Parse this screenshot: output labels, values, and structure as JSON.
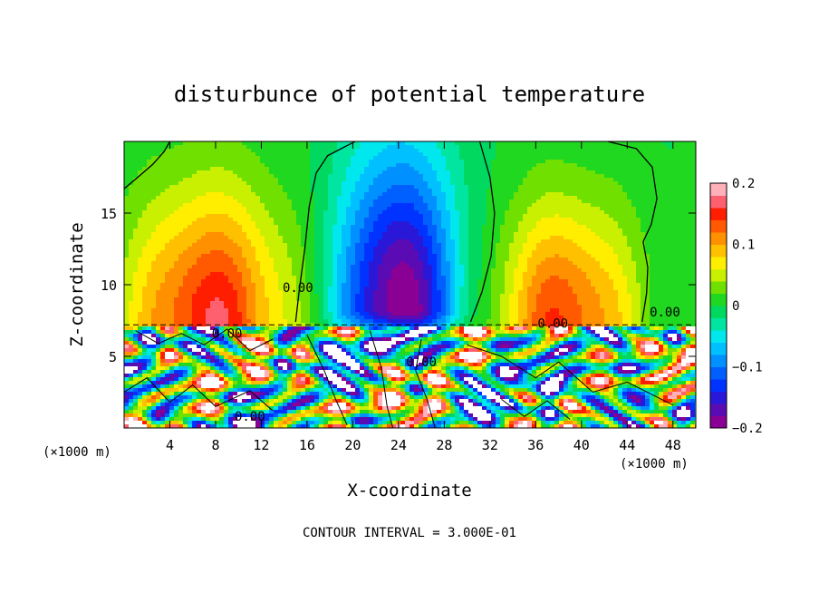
{
  "chart_data": {
    "type": "heatmap",
    "title": "disturbunce of potential temperature",
    "xlabel": "X-coordinate",
    "ylabel": "Z-coordinate",
    "x_unit": "(×1000 m)",
    "footer": "CONTOUR INTERVAL = 3.000E-01",
    "xlim": [
      0,
      50
    ],
    "ylim": [
      0,
      20
    ],
    "x_ticks": [
      {
        "value": 4,
        "label": "4"
      },
      {
        "value": 8,
        "label": "8"
      },
      {
        "value": 12,
        "label": "12"
      },
      {
        "value": 16,
        "label": "16"
      },
      {
        "value": 20,
        "label": "20"
      },
      {
        "value": 24,
        "label": "24"
      },
      {
        "value": 28,
        "label": "28"
      },
      {
        "value": 32,
        "label": "32"
      },
      {
        "value": 36,
        "label": "36"
      },
      {
        "value": 40,
        "label": "40"
      },
      {
        "value": 44,
        "label": "44"
      },
      {
        "value": 48,
        "label": "48"
      }
    ],
    "y_ticks": [
      {
        "value": 5,
        "label": "5"
      },
      {
        "value": 10,
        "label": "10"
      },
      {
        "value": 15,
        "label": "15"
      }
    ],
    "colorbar": {
      "min": -0.2,
      "max": 0.2,
      "ticks": [
        {
          "value": 0.2,
          "label": "0.2"
        },
        {
          "value": 0.1,
          "label": "0.1"
        },
        {
          "value": 0,
          "label": "0"
        },
        {
          "value": -0.1,
          "label": "-0.1"
        },
        {
          "value": -0.2,
          "label": "-0.2"
        }
      ],
      "colors": [
        "#8a0094",
        "#5b0bb4",
        "#2a18d8",
        "#0033ff",
        "#0060ff",
        "#0090ff",
        "#00c0ff",
        "#00e8ee",
        "#00e6a0",
        "#00d860",
        "#20d820",
        "#70e000",
        "#c8f000",
        "#ffee00",
        "#ffc000",
        "#ff9000",
        "#ff5a00",
        "#ff1e00",
        "#ff6070",
        "#ffb0b8"
      ]
    },
    "contour_labels": [
      {
        "x": 15.2,
        "y": 9.5,
        "text": "0.00"
      },
      {
        "x": 37.5,
        "y": 7.0,
        "text": "0.00"
      },
      {
        "x": 47.3,
        "y": 7.8,
        "text": "0.00"
      },
      {
        "x": 11.0,
        "y": 0.5,
        "text": "0.00"
      },
      {
        "x": 26.0,
        "y": 4.3,
        "text": "0.00"
      },
      {
        "x": 9.0,
        "y": 6.3,
        "text": "0.00"
      }
    ],
    "upper_features": [
      {
        "x": 7.5,
        "z": 7.2,
        "value": 0.16,
        "sx": 4.8,
        "sz": 6.5,
        "kind": "warm"
      },
      {
        "x": 38.5,
        "z": 7.2,
        "value": 0.14,
        "sx": 4.2,
        "sz": 5.8,
        "kind": "warm"
      },
      {
        "x": 24.0,
        "z": 8.3,
        "value": -0.2,
        "sx": 3.6,
        "sz": 7.5,
        "kind": "cold"
      }
    ],
    "boundary_z": 7.2
  }
}
